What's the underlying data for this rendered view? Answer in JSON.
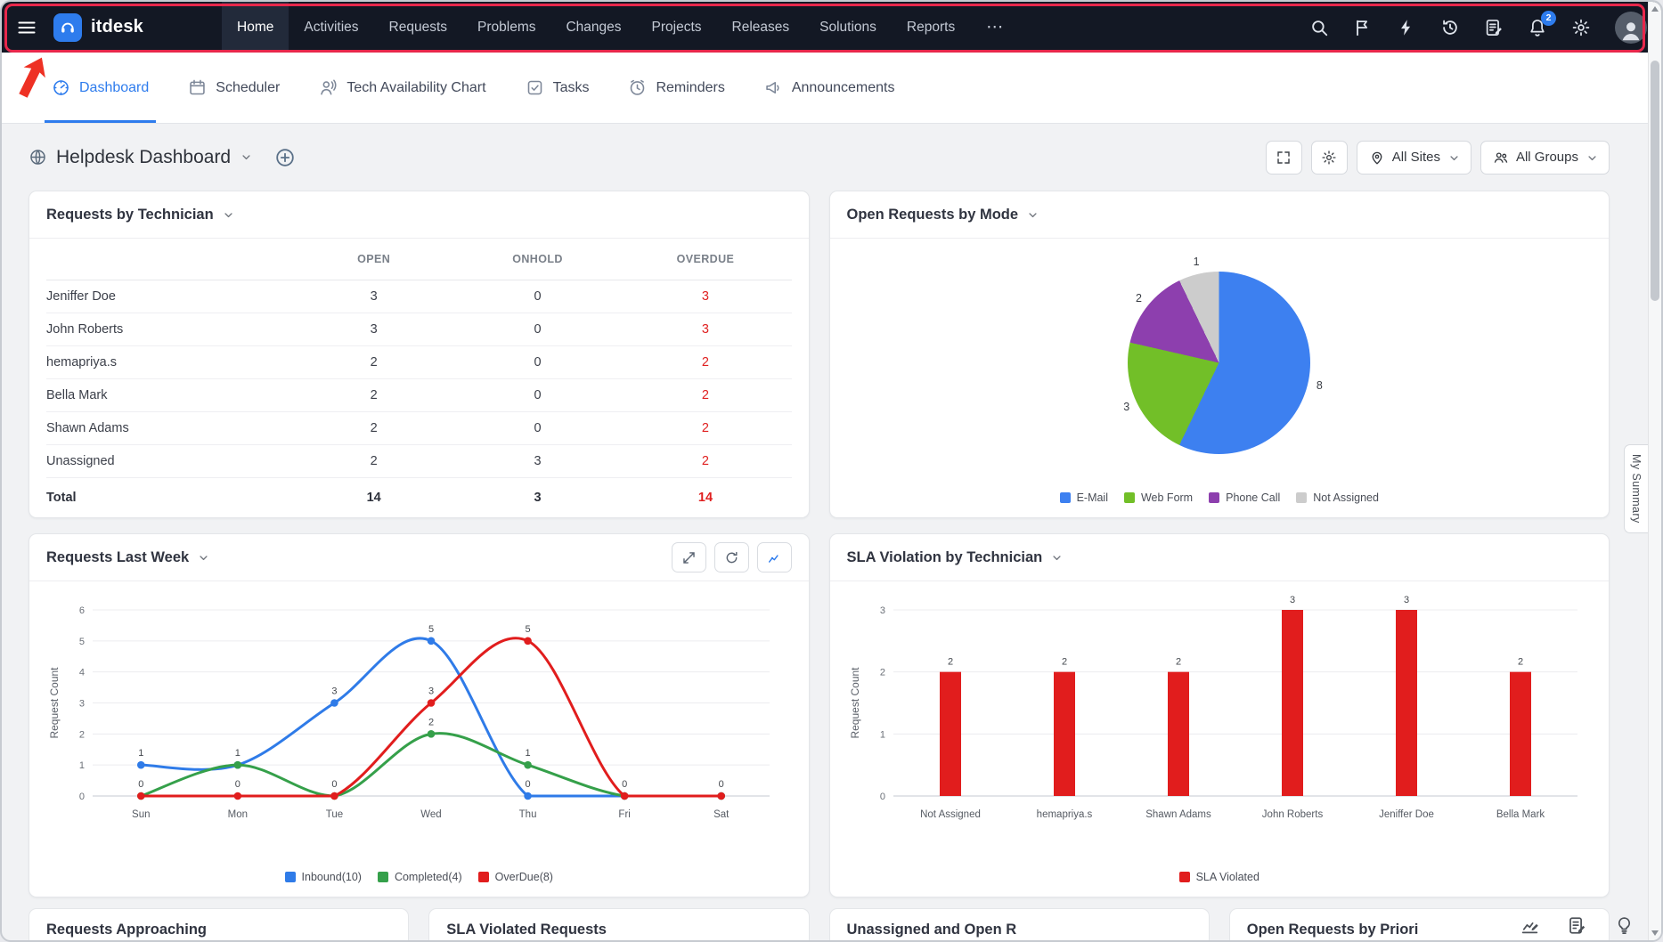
{
  "colors": {
    "accent": "#2e7ced",
    "alert_red": "#e02020",
    "annotation_border": "#e8274b",
    "annotation_arrow": "#ee3124"
  },
  "topbar": {
    "brand": "itdesk",
    "nav_items": [
      "Home",
      "Activities",
      "Requests",
      "Problems",
      "Changes",
      "Projects",
      "Releases",
      "Solutions",
      "Reports"
    ],
    "active_nav": "Home",
    "more_label": "⋯",
    "notification_count": "2"
  },
  "tabbar": {
    "items": [
      {
        "label": "Dashboard",
        "icon": "dashboard-icon",
        "active": true
      },
      {
        "label": "Scheduler",
        "icon": "scheduler-icon",
        "active": false
      },
      {
        "label": "Tech Availability Chart",
        "icon": "tech-availability-icon",
        "active": false
      },
      {
        "label": "Tasks",
        "icon": "tasks-icon",
        "active": false
      },
      {
        "label": "Reminders",
        "icon": "reminders-icon",
        "active": false
      },
      {
        "label": "Announcements",
        "icon": "announcements-icon",
        "active": false
      }
    ]
  },
  "dashboard_header": {
    "title": "Helpdesk Dashboard",
    "site_filter": "All Sites",
    "group_filter": "All Groups"
  },
  "requests_by_technician": {
    "title": "Requests by Technician",
    "columns": [
      "OPEN",
      "ONHOLD",
      "OVERDUE"
    ],
    "rows": [
      {
        "name": "Jeniffer Doe",
        "open": "3",
        "onhold": "0",
        "overdue": "3"
      },
      {
        "name": "John Roberts",
        "open": "3",
        "onhold": "0",
        "overdue": "3"
      },
      {
        "name": "hemapriya.s",
        "open": "2",
        "onhold": "0",
        "overdue": "2"
      },
      {
        "name": "Bella Mark",
        "open": "2",
        "onhold": "0",
        "overdue": "2"
      },
      {
        "name": "Shawn Adams",
        "open": "2",
        "onhold": "0",
        "overdue": "2"
      },
      {
        "name": "Unassigned",
        "open": "2",
        "onhold": "3",
        "overdue": "2"
      }
    ],
    "total": {
      "name": "Total",
      "open": "14",
      "onhold": "3",
      "overdue": "14"
    }
  },
  "chart_data": [
    {
      "id": "open_requests_by_mode",
      "type": "pie",
      "title": "Open Requests by Mode",
      "labels": [
        "E-Mail",
        "Web Form",
        "Phone Call",
        "Not Assigned"
      ],
      "values": [
        8,
        3,
        2,
        1
      ],
      "colors": [
        "#3d80f0",
        "#72bf28",
        "#8d3fae",
        "#cccccc"
      ],
      "legend_position": "bottom"
    },
    {
      "id": "requests_last_week",
      "type": "line",
      "title": "Requests Last Week",
      "x": [
        "Sun",
        "Mon",
        "Tue",
        "Wed",
        "Thu",
        "Fri",
        "Sat"
      ],
      "ylabel": "Request Count",
      "ylim": [
        0,
        6
      ],
      "grid": true,
      "legend_position": "bottom",
      "series": [
        {
          "name": "Inbound(10)",
          "color": "#2f7be8",
          "values": [
            1,
            1,
            3,
            5,
            0,
            0,
            0
          ]
        },
        {
          "name": "Completed(4)",
          "color": "#35a04a",
          "values": [
            0,
            1,
            0,
            2,
            1,
            0,
            0
          ]
        },
        {
          "name": "OverDue(8)",
          "color": "#e11d1d",
          "values": [
            0,
            0,
            0,
            3,
            5,
            0,
            0
          ]
        }
      ]
    },
    {
      "id": "sla_violation_by_technician",
      "type": "bar",
      "title": "SLA Violation by Technician",
      "categories": [
        "Not Assigned",
        "hemapriya.s",
        "Shawn Adams",
        "John Roberts",
        "Jeniffer Doe",
        "Bella Mark"
      ],
      "values": [
        2,
        2,
        2,
        3,
        3,
        2
      ],
      "bar_color": "#e11d1d",
      "ylabel": "Request Count",
      "ylim": [
        0,
        3
      ],
      "grid": true,
      "legend": [
        "SLA Violated"
      ],
      "legend_position": "bottom"
    }
  ],
  "partial_widgets": [
    "Requests Approaching",
    "SLA Violated Requests",
    "Unassigned and Open R",
    "Open Requests by Priori"
  ],
  "my_summary_label": "My Summary"
}
